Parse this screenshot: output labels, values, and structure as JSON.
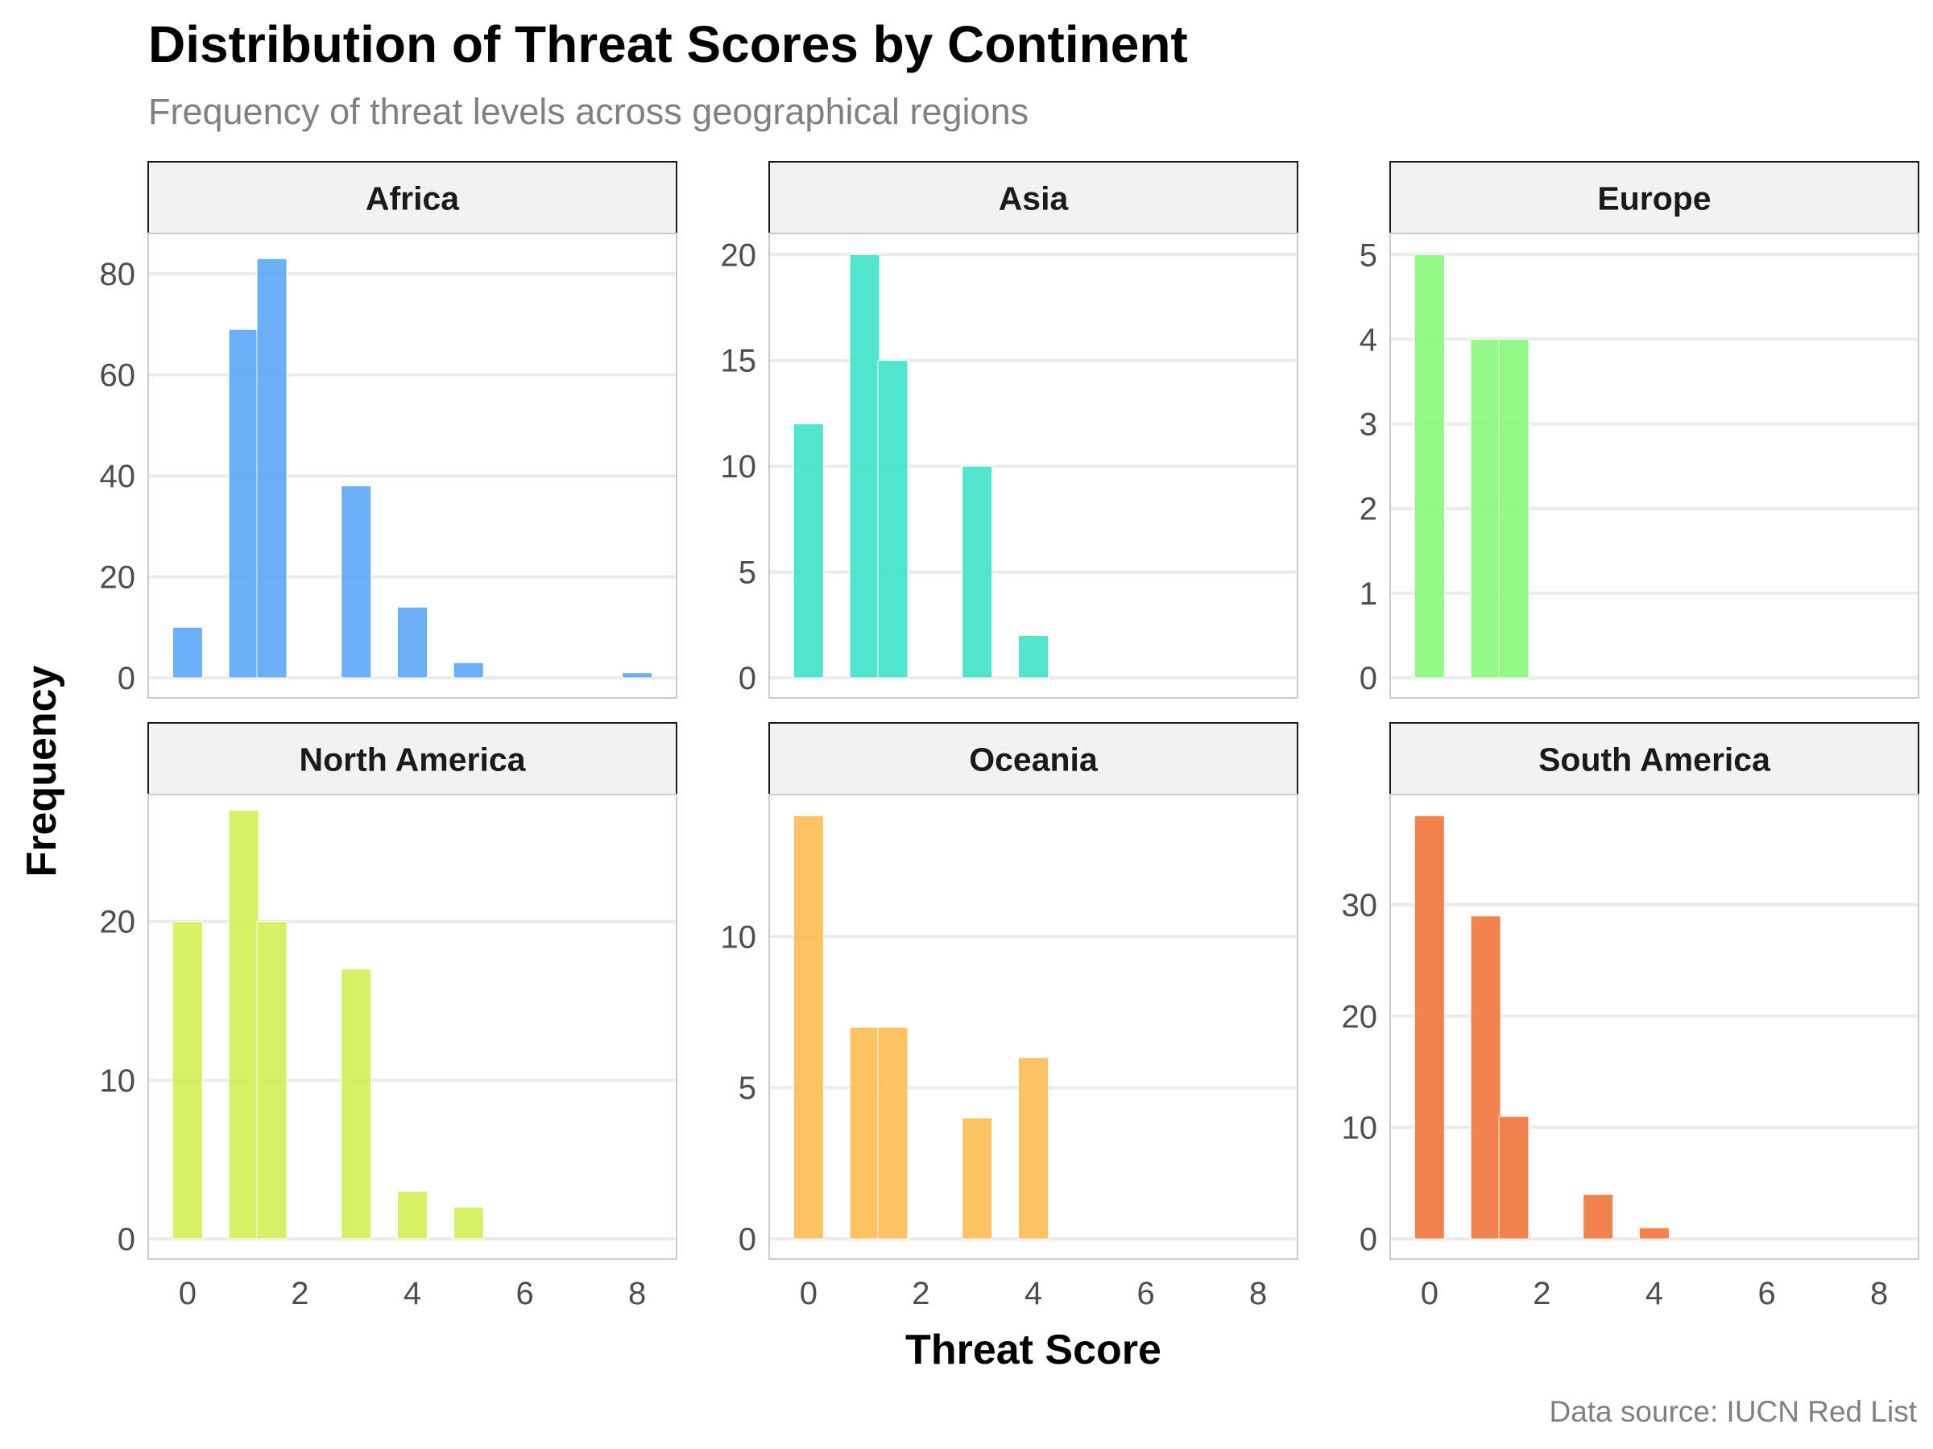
{
  "chart_data": {
    "type": "bar",
    "title": "Distribution of Threat Scores by Continent",
    "subtitle": "Frequency of threat levels across geographical regions",
    "xlabel": "Threat Score",
    "ylabel": "Frequency",
    "caption": "Data source: IUCN Red List",
    "facet_layout": "2 rows x 3 columns",
    "xlim": [
      -0.7,
      8.7
    ],
    "x_ticks": [
      0,
      2,
      4,
      6,
      8
    ],
    "grid": true,
    "legend": "none",
    "panels": [
      {
        "name": "Africa",
        "color": "#5aa6f7",
        "ylim": [
          0,
          88
        ],
        "y_ticks": [
          0,
          20,
          40,
          60,
          80
        ],
        "bins": [
          {
            "x": 0,
            "value": 10
          },
          {
            "x": 1,
            "value": 69
          },
          {
            "x": 1.5,
            "value": 83
          },
          {
            "x": 3,
            "value": 38
          },
          {
            "x": 4,
            "value": 14
          },
          {
            "x": 5,
            "value": 3
          },
          {
            "x": 8,
            "value": 1
          }
        ]
      },
      {
        "name": "Asia",
        "color": "#3ee2c7",
        "ylim": [
          0,
          21
        ],
        "y_ticks": [
          0,
          5,
          10,
          15,
          20
        ],
        "bins": [
          {
            "x": 0,
            "value": 12
          },
          {
            "x": 1,
            "value": 20
          },
          {
            "x": 1.5,
            "value": 15
          },
          {
            "x": 3,
            "value": 10
          },
          {
            "x": 4,
            "value": 2
          }
        ]
      },
      {
        "name": "Europe",
        "color": "#86fa78",
        "ylim": [
          0,
          5.25
        ],
        "y_ticks": [
          0,
          1,
          2,
          3,
          4,
          5
        ],
        "bins": [
          {
            "x": 0,
            "value": 5
          },
          {
            "x": 1,
            "value": 4
          },
          {
            "x": 1.5,
            "value": 4
          }
        ]
      },
      {
        "name": "North America",
        "color": "#d2ef58",
        "ylim": [
          0,
          28
        ],
        "y_ticks": [
          0,
          10,
          20
        ],
        "bins": [
          {
            "x": 0,
            "value": 20
          },
          {
            "x": 1,
            "value": 27
          },
          {
            "x": 1.5,
            "value": 20
          },
          {
            "x": 3,
            "value": 17
          },
          {
            "x": 4,
            "value": 3
          },
          {
            "x": 5,
            "value": 2
          }
        ]
      },
      {
        "name": "Oceania",
        "color": "#fcbd53",
        "ylim": [
          0,
          14.7
        ],
        "y_ticks": [
          0,
          5,
          10
        ],
        "bins": [
          {
            "x": 0,
            "value": 14
          },
          {
            "x": 1,
            "value": 7
          },
          {
            "x": 1.5,
            "value": 7
          },
          {
            "x": 3,
            "value": 4
          },
          {
            "x": 4,
            "value": 6
          }
        ]
      },
      {
        "name": "South America",
        "color": "#f0773a",
        "ylim": [
          0,
          39.9
        ],
        "y_ticks": [
          0,
          10,
          20,
          30
        ],
        "bins": [
          {
            "x": 0,
            "value": 38
          },
          {
            "x": 1,
            "value": 29
          },
          {
            "x": 1.5,
            "value": 11
          },
          {
            "x": 3,
            "value": 4
          },
          {
            "x": 4,
            "value": 1
          }
        ]
      }
    ]
  }
}
